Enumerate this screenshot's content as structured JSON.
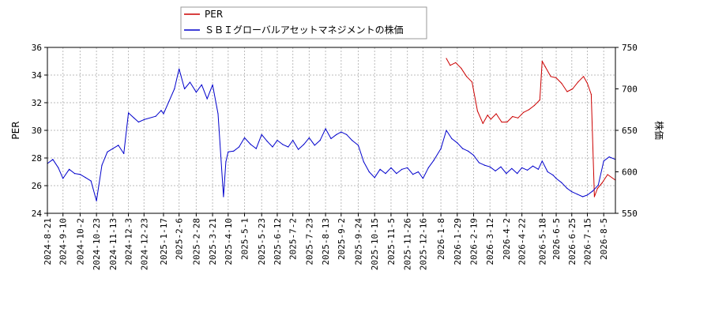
{
  "chart_data": {
    "type": "line",
    "ylabel_left": "PER",
    "ylabel_right": "株価",
    "y_left_range": [
      24,
      36
    ],
    "y_left_ticks": [
      "24",
      "26",
      "28",
      "30",
      "32",
      "34",
      "36"
    ],
    "y_right_range": [
      550,
      750
    ],
    "y_right_ticks": [
      "550",
      "600",
      "650",
      "700",
      "750"
    ],
    "x_ticks": [
      "2024-8-21",
      "2024-9-10",
      "2024-10-2",
      "2024-10-23",
      "2024-11-13",
      "2024-12-3",
      "2024-12-23",
      "2025-1-17",
      "2025-2-6",
      "2025-2-28",
      "2025-3-21",
      "2025-4-10",
      "2025-5-1",
      "2025-5-23",
      "2025-6-12",
      "2025-7-2",
      "2025-7-23",
      "2025-8-13",
      "2025-9-2",
      "2025-9-24",
      "2025-10-15",
      "2025-11-5",
      "2025-11-26",
      "2025-12-16",
      "2026-1-8",
      "2026-1-29",
      "2026-2-19",
      "2026-3-12",
      "2026-4-2",
      "2026-4-22",
      "2026-5-18",
      "2026-6-5",
      "2026-6-25",
      "2026-7-15",
      "2026-8-5"
    ],
    "grid": true,
    "legend_position": "top-left",
    "series": [
      {
        "name": "PER",
        "axis": "left",
        "color": "#cc0000",
        "x": [
          "2026-1-15",
          "2026-1-20",
          "2026-1-27",
          "2026-2-3",
          "2026-2-10",
          "2026-2-17",
          "2026-2-24",
          "2026-3-3",
          "2026-3-9",
          "2026-3-13",
          "2026-3-20",
          "2026-3-27",
          "2026-4-3",
          "2026-4-10",
          "2026-4-17",
          "2026-4-24",
          "2026-5-1",
          "2026-5-8",
          "2026-5-15",
          "2026-5-18",
          "2026-5-22",
          "2026-5-29",
          "2026-6-5",
          "2026-6-12",
          "2026-6-19",
          "2026-6-26",
          "2026-7-3",
          "2026-7-10",
          "2026-7-15",
          "2026-7-20",
          "2026-7-24",
          "2026-7-28",
          "2026-8-3",
          "2026-8-10",
          "2026-8-20"
        ],
        "values": [
          35.2,
          34.7,
          34.9,
          34.5,
          33.9,
          33.5,
          31.4,
          30.5,
          31.1,
          30.8,
          31.2,
          30.6,
          30.6,
          31.0,
          30.9,
          31.3,
          31.5,
          31.8,
          32.2,
          35.0,
          34.6,
          33.9,
          33.8,
          33.4,
          32.8,
          33.0,
          33.5,
          33.9,
          33.4,
          32.6,
          25.2,
          25.8,
          26.2,
          26.8,
          26.4
        ]
      },
      {
        "name": "ＳＢＩグローバルアセットマネジメントの株価",
        "axis": "right",
        "color": "#0000cc",
        "x": [
          "2024-8-21",
          "2024-8-28",
          "2024-9-4",
          "2024-9-10",
          "2024-9-18",
          "2024-9-25",
          "2024-10-2",
          "2024-10-9",
          "2024-10-16",
          "2024-10-23",
          "2024-10-30",
          "2024-11-6",
          "2024-11-13",
          "2024-11-20",
          "2024-11-27",
          "2024-12-3",
          "2024-12-10",
          "2024-12-16",
          "2024-12-23",
          "2025-1-7",
          "2025-1-14",
          "2025-1-17",
          "2025-1-24",
          "2025-1-31",
          "2025-2-6",
          "2025-2-13",
          "2025-2-20",
          "2025-2-28",
          "2025-3-7",
          "2025-3-14",
          "2025-3-21",
          "2025-3-28",
          "2025-4-4",
          "2025-4-7",
          "2025-4-10",
          "2025-4-17",
          "2025-4-24",
          "2025-5-1",
          "2025-5-9",
          "2025-5-16",
          "2025-5-23",
          "2025-5-30",
          "2025-6-6",
          "2025-6-12",
          "2025-6-19",
          "2025-6-26",
          "2025-7-2",
          "2025-7-9",
          "2025-7-16",
          "2025-7-23",
          "2025-7-30",
          "2025-8-6",
          "2025-8-13",
          "2025-8-20",
          "2025-8-27",
          "2025-9-2",
          "2025-9-9",
          "2025-9-16",
          "2025-9-24",
          "2025-10-1",
          "2025-10-8",
          "2025-10-15",
          "2025-10-22",
          "2025-10-29",
          "2025-11-5",
          "2025-11-12",
          "2025-11-19",
          "2025-11-26",
          "2025-12-3",
          "2025-12-10",
          "2025-12-16",
          "2025-12-23",
          "2025-12-30",
          "2026-1-8",
          "2026-1-15",
          "2026-1-22",
          "2026-1-29",
          "2026-2-5",
          "2026-2-12",
          "2026-2-19",
          "2026-2-26",
          "2026-3-5",
          "2026-3-12",
          "2026-3-19",
          "2026-3-26",
          "2026-4-2",
          "2026-4-9",
          "2026-4-16",
          "2026-4-22",
          "2026-4-29",
          "2026-5-6",
          "2026-5-13",
          "2026-5-18",
          "2026-5-25",
          "2026-6-1",
          "2026-6-5",
          "2026-6-12",
          "2026-6-19",
          "2026-6-25",
          "2026-7-2",
          "2026-7-9",
          "2026-7-15",
          "2026-7-22",
          "2026-7-29",
          "2026-8-5",
          "2026-8-12",
          "2026-8-20"
        ],
        "values": [
          610,
          615,
          605,
          592,
          603,
          598,
          597,
          593,
          589,
          565,
          608,
          624,
          628,
          632,
          622,
          671,
          665,
          660,
          663,
          667,
          674,
          670,
          685,
          700,
          724,
          700,
          708,
          696,
          705,
          688,
          705,
          670,
          570,
          612,
          624,
          625,
          630,
          641,
          633,
          628,
          645,
          637,
          630,
          638,
          633,
          630,
          638,
          627,
          633,
          641,
          632,
          638,
          652,
          640,
          645,
          648,
          645,
          638,
          632,
          612,
          600,
          593,
          603,
          598,
          605,
          598,
          603,
          605,
          597,
          600,
          592,
          605,
          614,
          628,
          650,
          640,
          635,
          628,
          625,
          620,
          611,
          608,
          606,
          601,
          606,
          598,
          604,
          598,
          605,
          602,
          607,
          603,
          613,
          600,
          596,
          592,
          587,
          580,
          576,
          573,
          570,
          572,
          577,
          584,
          613,
          618,
          615
        ]
      }
    ]
  }
}
